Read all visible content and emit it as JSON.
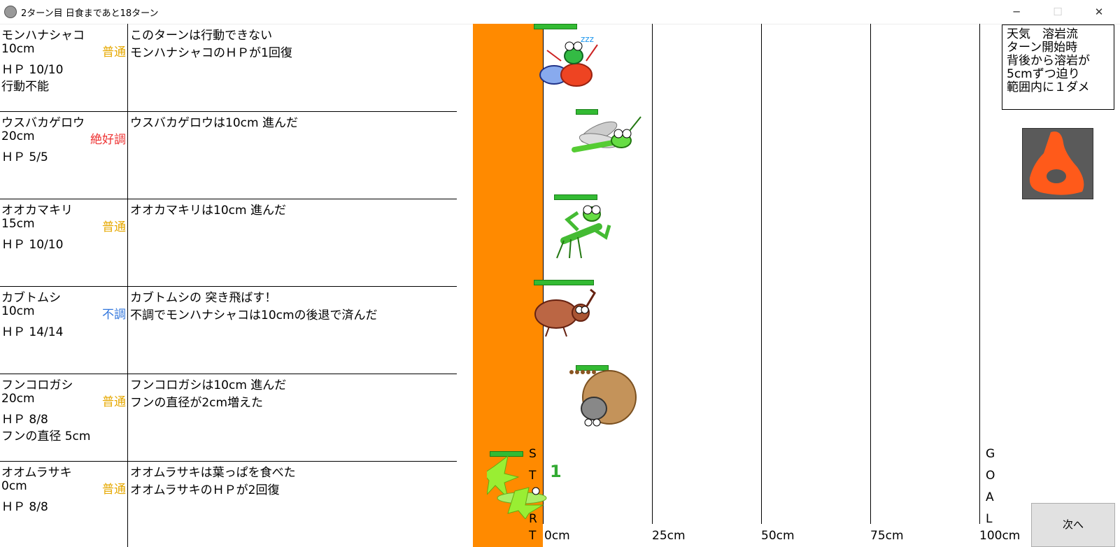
{
  "window": {
    "title": "2ターン目 日食まであと18ターン",
    "minimize_glyph": "─",
    "maximize_glyph": "☐",
    "close_glyph": "✕"
  },
  "players": [
    {
      "name": "モンハナシャコ",
      "distance": "10cm",
      "condition": "普通",
      "condition_color": "#e6a800",
      "hp": "ＨＰ 10/10",
      "extra": "行動不能",
      "messages": [
        "このターンは行動できない",
        "モンハナシャコのＨＰが1回復"
      ]
    },
    {
      "name": "ウスバカゲロウ",
      "distance": "20cm",
      "condition": "絶好調",
      "condition_color": "#ee3333",
      "hp": "ＨＰ 5/5",
      "extra": "",
      "messages": [
        "ウスバカゲロウは10cm 進んだ"
      ]
    },
    {
      "name": "オオカマキリ",
      "distance": "15cm",
      "condition": "普通",
      "condition_color": "#e6a800",
      "hp": "ＨＰ 10/10",
      "extra": "",
      "messages": [
        "オオカマキリは10cm 進んだ"
      ]
    },
    {
      "name": "カブトムシ",
      "distance": "10cm",
      "condition": "不調",
      "condition_color": "#3377dd",
      "hp": "ＨＰ 14/14",
      "extra": "",
      "messages": [
        "カブトムシの 突き飛ばす！",
        "不調でモンハナシャコは10cmの後退で済んだ"
      ]
    },
    {
      "name": "フンコロガシ",
      "distance": "20cm",
      "condition": "普通",
      "condition_color": "#e6a800",
      "hp": "ＨＰ 8/8",
      "extra": "フンの直径 5cm",
      "messages": [
        "フンコロガシは10cm 進んだ",
        "フンの直径が2cm増えた"
      ]
    },
    {
      "name": "オオムラサキ",
      "distance": "0cm",
      "condition": "普通",
      "condition_color": "#e6a800",
      "hp": "ＨＰ 8/8",
      "extra": "",
      "messages": [
        "オオムラサキは葉っぱを食べた",
        "オオムラサキのＨＰが2回復"
      ]
    }
  ],
  "track": {
    "ticks": [
      "0cm",
      "25cm",
      "50cm",
      "75cm",
      "100cm"
    ],
    "start_letters": [
      "S",
      "T",
      "A",
      "R",
      "T"
    ],
    "goal_letters": [
      "G",
      "O",
      "A",
      "L"
    ],
    "lava_color": "#ff8a00",
    "counter_badge": "1"
  },
  "weather": {
    "lines": [
      "天気　溶岩流",
      "ターン開始時",
      "背後から溶岩が",
      "5cmずつ迫り",
      "範囲内に１ダメ"
    ]
  },
  "next_button": "次へ",
  "icons": [
    "app-icon",
    "mantis-shrimp-icon",
    "sleep-zzz-icon",
    "antlion-icon",
    "mantis-icon",
    "beetle-icon",
    "dung-beetle-icon",
    "caterpillar-icon",
    "lava-weather-icon"
  ]
}
